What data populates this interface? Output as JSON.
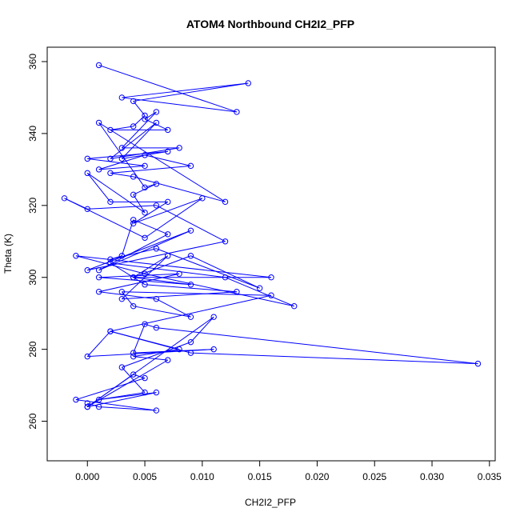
{
  "chart_data": {
    "type": "line",
    "title": "ATOM4 Northbound CH2I2_PFP",
    "xlabel": "CH2I2_PFP",
    "ylabel": "Theta (K)",
    "xlim": [
      -0.0035,
      0.0355
    ],
    "ylim": [
      249,
      364
    ],
    "x_ticks": [
      0.0,
      0.005,
      0.01,
      0.015,
      0.02,
      0.025,
      0.03,
      0.035
    ],
    "x_tick_labels": [
      "0.000",
      "0.005",
      "0.010",
      "0.015",
      "0.020",
      "0.025",
      "0.030",
      "0.035"
    ],
    "y_ticks": [
      260,
      280,
      300,
      320,
      340,
      360
    ],
    "y_tick_labels": [
      "260",
      "280",
      "300",
      "320",
      "340",
      "360"
    ],
    "grid": false,
    "legend": "none",
    "color": "#0000ff",
    "marker": "open-circle",
    "series": [
      {
        "x": [
          0.001,
          0.013,
          0.003,
          0.014,
          0.004,
          0.005,
          0.004,
          0.002,
          0.007,
          0.005,
          0.006,
          0.003,
          0.008,
          0.002,
          0.006,
          0.003,
          0.007,
          0.0,
          0.005,
          0.001,
          0.005,
          0.009,
          0.002,
          0.004,
          0.012,
          0.001,
          0.005,
          0.006,
          0.004,
          0.005,
          0.0,
          0.002,
          0.007,
          0.004,
          0.01,
          0.005,
          -0.002,
          0.0,
          0.006,
          0.012,
          0.0,
          0.009,
          0.001,
          0.007,
          0.004,
          0.003,
          0.002,
          0.006,
          0.015,
          0.009,
          0.004,
          0.016,
          -0.001,
          0.005,
          0.018,
          0.012,
          0.002,
          0.005,
          0.013,
          0.003,
          0.007,
          0.004,
          0.009,
          0.001,
          0.008,
          0.001,
          0.006,
          0.009,
          0.004,
          0.003,
          0.016,
          0.002,
          0.0,
          0.011,
          0.004,
          0.005,
          0.006,
          0.034,
          0.009,
          0.002,
          0.008,
          0.004,
          0.007,
          0.0,
          0.011,
          0.009,
          0.003,
          0.005,
          0.001,
          0.006,
          0.0,
          0.004,
          0.005,
          -0.001,
          0.006,
          0.001,
          0.0
        ],
        "y": [
          359,
          346,
          350,
          354,
          349,
          345,
          342,
          341,
          341,
          344,
          346,
          336,
          336,
          333,
          343,
          333,
          335,
          333,
          331,
          330,
          334,
          331,
          329,
          328,
          321,
          343,
          325,
          326,
          323,
          318,
          329,
          321,
          321,
          315,
          322,
          311,
          322,
          319,
          320,
          310,
          302,
          313,
          302,
          312,
          316,
          306,
          305,
          308,
          297,
          306,
          300,
          300,
          306,
          301,
          292,
          300,
          304,
          298,
          296,
          294,
          306,
          300,
          298,
          300,
          301,
          296,
          294,
          289,
          292,
          296,
          295,
          285,
          278,
          280,
          279,
          287,
          286,
          276,
          279,
          285,
          280,
          278,
          277,
          264,
          289,
          282,
          275,
          268,
          266,
          268,
          264,
          273,
          272,
          266,
          263,
          264,
          265
        ]
      }
    ]
  }
}
